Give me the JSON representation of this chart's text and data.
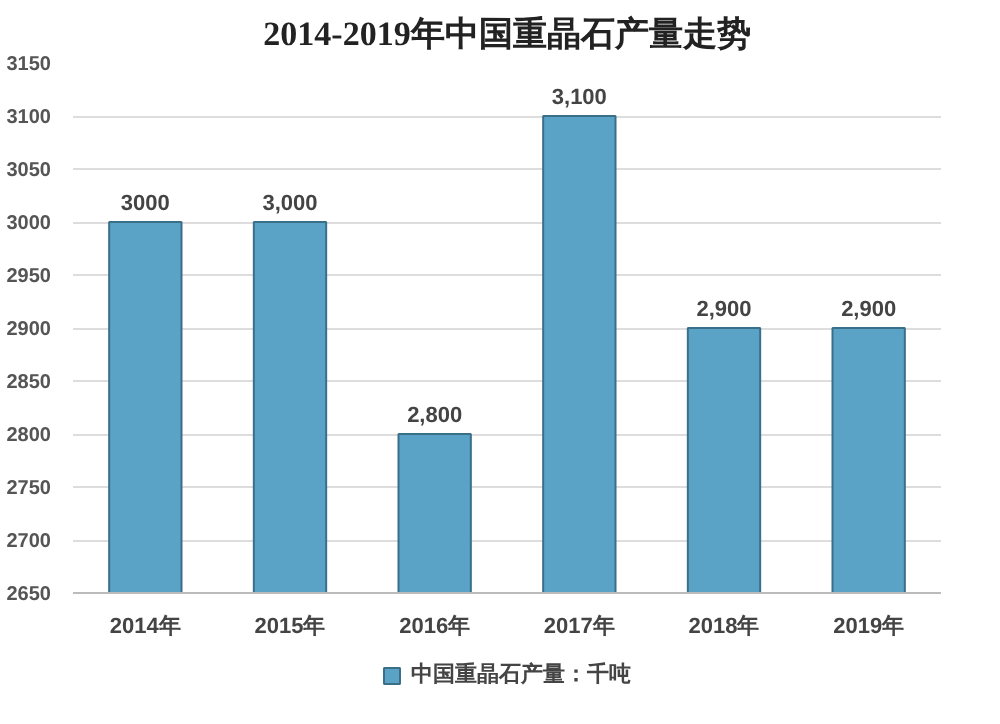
{
  "chart_data": {
    "type": "bar",
    "title": "2014-2019年中国重晶石产量走势",
    "categories": [
      "2014年",
      "2015年",
      "2016年",
      "2017年",
      "2018年",
      "2019年"
    ],
    "series": [
      {
        "name": "中国重晶石产量：千吨",
        "color": "#5ba3c6",
        "values": [
          3000,
          3000,
          2800,
          3100,
          2900,
          2900
        ],
        "value_labels": [
          "3000",
          "3,000",
          "2,800",
          "3,100",
          "2,900",
          "2,900"
        ]
      }
    ],
    "ylim": [
      2650,
      3150
    ],
    "yticks": [
      2650,
      2700,
      2750,
      2800,
      2850,
      2900,
      2950,
      3000,
      3050,
      3100,
      3150
    ],
    "grid": "y",
    "legend": "bottom"
  }
}
